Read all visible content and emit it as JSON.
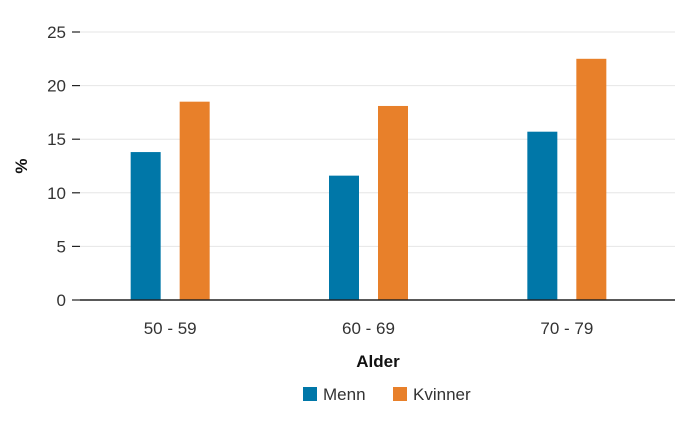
{
  "chart_data": {
    "type": "bar",
    "categories": [
      "50 - 59",
      "60 - 69",
      "70 - 79"
    ],
    "series": [
      {
        "name": "Menn",
        "values": [
          13.8,
          11.6,
          15.7
        ],
        "color": "#0077a8"
      },
      {
        "name": "Kvinner",
        "values": [
          18.5,
          18.1,
          22.5
        ],
        "color": "#e8802a"
      }
    ],
    "xlabel": "Alder",
    "ylabel": "%",
    "ylim": [
      0,
      25
    ],
    "yticks": [
      0,
      5,
      10,
      15,
      20,
      25
    ],
    "grid": true,
    "legend": "bottom-center"
  }
}
